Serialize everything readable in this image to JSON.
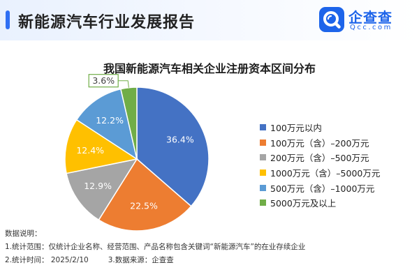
{
  "header": {
    "title": "新能源汽车行业发展报告",
    "accent_color": "#2f6ff3",
    "logo": {
      "name": "企查查",
      "domain": "Qcc.com",
      "icon": "qcc-magnifier-logo-icon",
      "color": "#1d64ea"
    }
  },
  "chart_data": {
    "type": "pie",
    "title": "我国新能源汽车相关企业注册资本区间分布",
    "start_angle_deg": 0,
    "direction": "clockwise",
    "slices": [
      {
        "label": "100万元以内",
        "value": 36.4,
        "value_label": "36.4%",
        "color": "#4472c4"
      },
      {
        "label": "100万元（含）–200万元",
        "value": 22.5,
        "value_label": "22.5%",
        "color": "#ed7d31"
      },
      {
        "label": "200万元（含）–500万元",
        "value": 12.9,
        "value_label": "12.9%",
        "color": "#a5a5a5"
      },
      {
        "label": "1000万元（含）–5000万元",
        "value": 12.4,
        "value_label": "12.4%",
        "color": "#ffc000"
      },
      {
        "label": "500万元（含）–1000万元",
        "value": 12.2,
        "value_label": "12.2%",
        "color": "#5b9bd5"
      },
      {
        "label": "5000万元及以上",
        "value": 3.6,
        "value_label": "3.6%",
        "color": "#70ad47"
      }
    ],
    "legend_position": "right"
  },
  "notes": {
    "heading": "数据说明：",
    "line1": "1.统计范围：仅统计企业名称、经营范围、产品名称包含关键词“新能源汽车”的在业存续企业",
    "line2_time": "2.统计时间：  2025/2/10",
    "line2_source": "3.数据来源：企查查"
  }
}
